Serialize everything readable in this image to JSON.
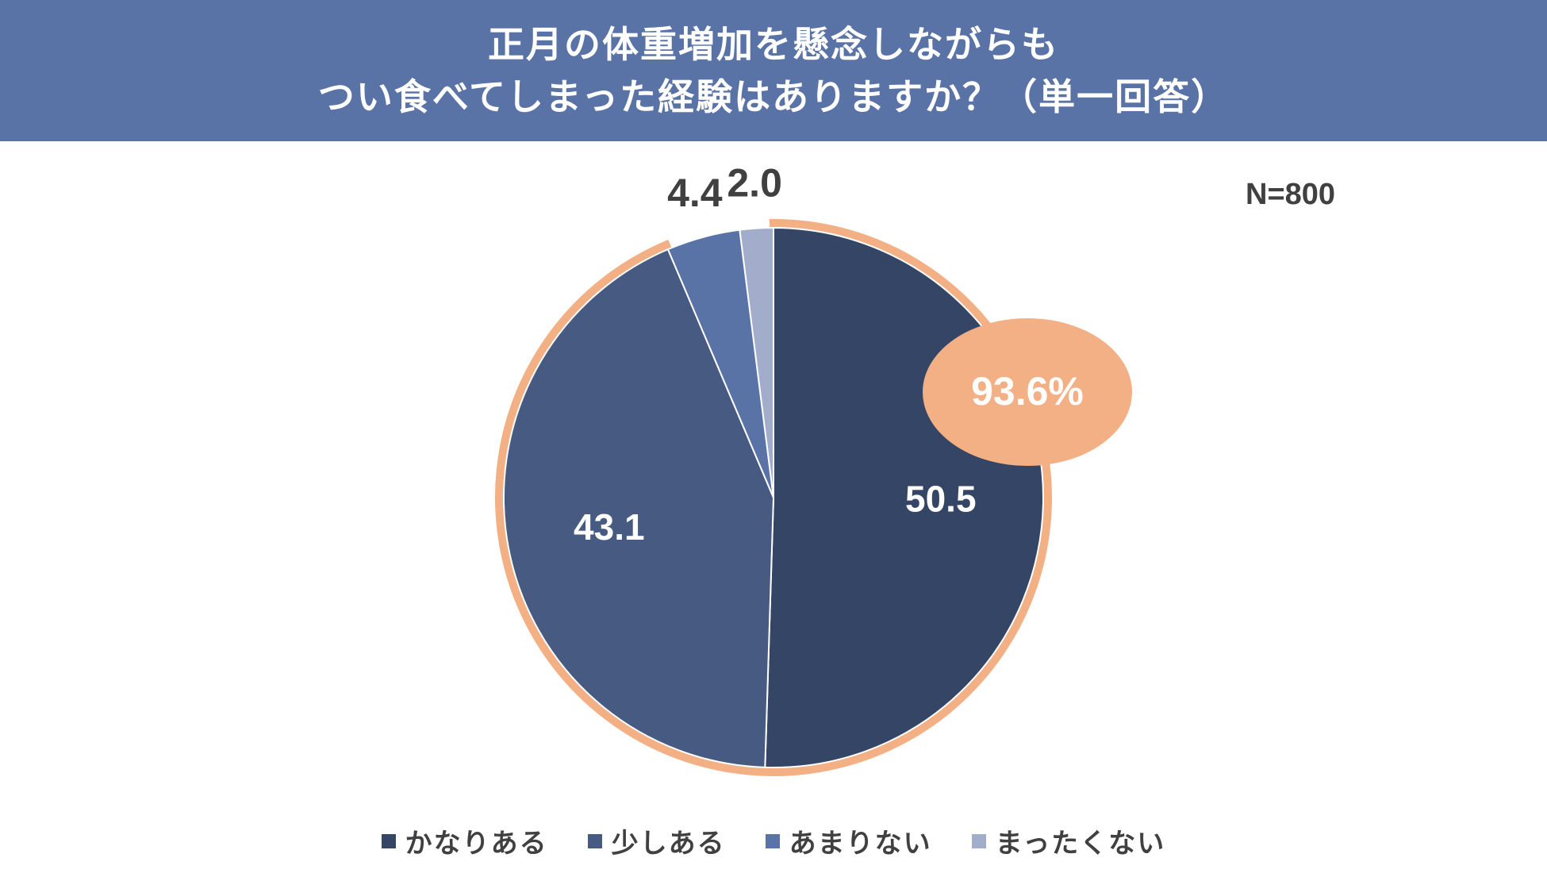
{
  "header": {
    "title_line1": "正月の体重増加を懸念しながらも",
    "title_line2": "つい食べてしまった経験はありますか？（単一回答）"
  },
  "sample_size": "N=800",
  "callout": {
    "text": "93.6%",
    "color": "#f2b084"
  },
  "colors": {
    "header_bg": "#5a73a6",
    "highlight_outline": "#f2b084",
    "label_dark": "#404040",
    "label_light": "#ffffff"
  },
  "chart_data": {
    "type": "pie",
    "title": "正月の体重増加を懸念しながらもつい食べてしまった経験はありますか？（単一回答）",
    "start": "12 o'clock",
    "direction": "clockwise",
    "legend_position": "bottom",
    "slices": [
      {
        "label": "かなりある",
        "value": 50.5,
        "display": "50.5",
        "color": "#344565",
        "label_color": "#ffffff"
      },
      {
        "label": "少しある",
        "value": 43.1,
        "display": "43.1",
        "color": "#465a82",
        "label_color": "#ffffff"
      },
      {
        "label": "あまりない",
        "value": 4.4,
        "display": "4.4",
        "color": "#5a73a6",
        "label_color": "#404040"
      },
      {
        "label": "まったくない",
        "value": 2.0,
        "display": "2.0",
        "color": "#a2adcc",
        "label_color": "#404040"
      }
    ],
    "highlight_group": [
      "かなりある",
      "少しある"
    ],
    "highlight_total": "93.6%"
  }
}
